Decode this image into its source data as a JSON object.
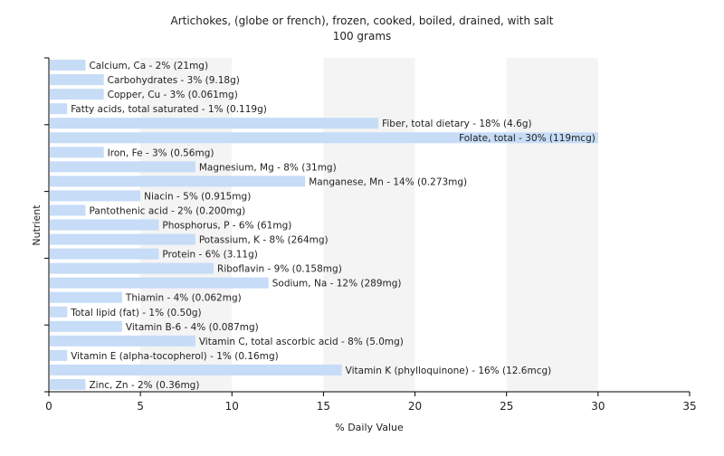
{
  "chart_data": {
    "type": "bar",
    "orientation": "horizontal",
    "title": "Artichokes, (globe or french), frozen, cooked, boiled, drained, with salt",
    "subtitle": "100 grams",
    "xlabel": "% Daily Value",
    "ylabel": "Nutrient",
    "xlim": [
      0,
      35
    ],
    "xticks": [
      0,
      5,
      10,
      15,
      20,
      25,
      30,
      35
    ],
    "grid": "vertical bands",
    "bar_color": "#c6dcf7",
    "categories": [
      "Calcium, Ca",
      "Carbohydrates",
      "Copper, Cu",
      "Fatty acids, total saturated",
      "Fiber, total dietary",
      "Folate, total",
      "Iron, Fe",
      "Magnesium, Mg",
      "Manganese, Mn",
      "Niacin",
      "Pantothenic acid",
      "Phosphorus, P",
      "Potassium, K",
      "Protein",
      "Riboflavin",
      "Sodium, Na",
      "Thiamin",
      "Total lipid (fat)",
      "Vitamin B-6",
      "Vitamin C, total ascorbic acid",
      "Vitamin E (alpha-tocopherol)",
      "Vitamin K (phylloquinone)",
      "Zinc, Zn"
    ],
    "values": [
      2,
      3,
      3,
      1,
      18,
      30,
      3,
      8,
      14,
      5,
      2,
      6,
      8,
      6,
      9,
      12,
      4,
      1,
      4,
      8,
      1,
      16,
      2
    ],
    "labels": [
      "Calcium, Ca - 2% (21mg)",
      "Carbohydrates - 3% (9.18g)",
      "Copper, Cu - 3% (0.061mg)",
      "Fatty acids, total saturated - 1% (0.119g)",
      "Fiber, total dietary - 18% (4.6g)",
      "Folate, total - 30% (119mcg)",
      "Iron, Fe - 3% (0.56mg)",
      "Magnesium, Mg - 8% (31mg)",
      "Manganese, Mn - 14% (0.273mg)",
      "Niacin - 5% (0.915mg)",
      "Pantothenic acid - 2% (0.200mg)",
      "Phosphorus, P - 6% (61mg)",
      "Potassium, K - 8% (264mg)",
      "Protein - 6% (3.11g)",
      "Riboflavin - 9% (0.158mg)",
      "Sodium, Na - 12% (289mg)",
      "Thiamin - 4% (0.062mg)",
      "Total lipid (fat) - 1% (0.50g)",
      "Vitamin B-6 - 4% (0.087mg)",
      "Vitamin C, total ascorbic acid - 8% (5.0mg)",
      "Vitamin E (alpha-tocopherol) - 1% (0.16mg)",
      "Vitamin K (phylloquinone) - 16% (12.6mcg)",
      "Zinc, Zn - 2% (0.36mg)"
    ]
  }
}
